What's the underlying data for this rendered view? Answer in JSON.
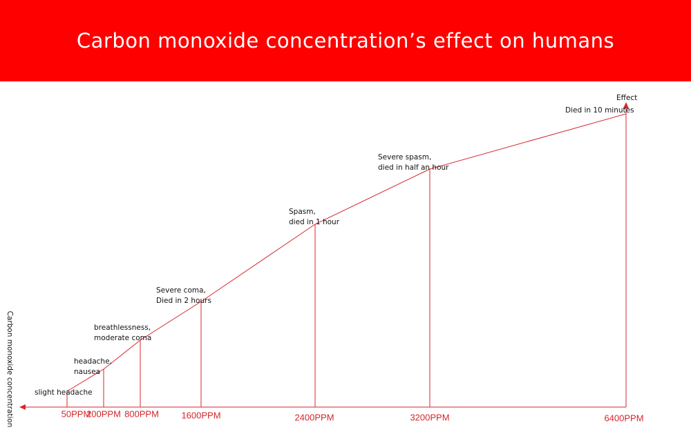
{
  "header": {
    "title": "Carbon monoxide concentration’s effect on humans"
  },
  "axes": {
    "y_label": "Effect",
    "x_label": "Carbon monoxide concentration"
  },
  "points": [
    {
      "ppm": "50PPM",
      "effect": [
        "slight headache"
      ]
    },
    {
      "ppm": "200PPM",
      "effect": [
        "headache,",
        "nausea"
      ]
    },
    {
      "ppm": "800PPM",
      "effect": [
        "breathlessness,",
        "moderate coma"
      ]
    },
    {
      "ppm": "1600PPM",
      "effect": [
        "Severe coma,",
        "Died in 2 hours"
      ]
    },
    {
      "ppm": "2400PPM",
      "effect": [
        "Spasm,",
        "died in 1 hour"
      ]
    },
    {
      "ppm": "3200PPM",
      "effect": [
        "Severe spasm,",
        "died in half an hour"
      ]
    },
    {
      "ppm": "6400PPM",
      "effect": [
        "Died in 10 minutes"
      ]
    }
  ]
}
